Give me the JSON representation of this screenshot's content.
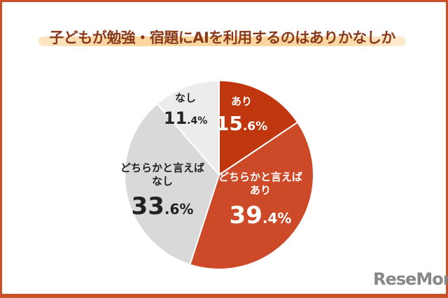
{
  "chart_data": {
    "type": "pie",
    "title": "子どもが勉強・宿題にAIを利用するのはありかなしか",
    "start": "top",
    "direction": "clockwise",
    "slices": [
      {
        "label": "あり",
        "value": 15.6,
        "display": {
          "int": "15",
          "dec": ".6%"
        },
        "color": "#c0360f",
        "text_color": "#ffffff"
      },
      {
        "label": "どちらかと言えば\nあり",
        "value": 39.4,
        "display": {
          "int": "39",
          "dec": ".4%"
        },
        "color": "#cc4a28",
        "text_color": "#ffffff"
      },
      {
        "label": "どちらかと言えば\nなし",
        "value": 33.6,
        "display": {
          "int": "33",
          "dec": ".6%"
        },
        "color": "#d9d9d9",
        "text_color": "#222222"
      },
      {
        "label": "なし",
        "value": 11.4,
        "display": {
          "int": "11",
          "dec": ".4%"
        },
        "color": "#ececec",
        "text_color": "#222222"
      }
    ]
  },
  "logo": "ReseMom"
}
